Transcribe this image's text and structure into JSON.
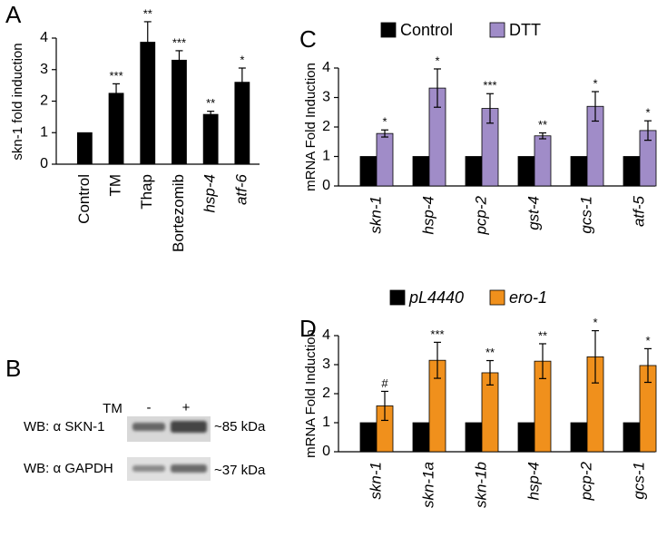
{
  "chart_data": [
    {
      "type": "bar",
      "panel": "A",
      "ylabel": "skn-1 fold induction",
      "categories": [
        "Control",
        "TM",
        "Thap",
        "Bortezomib",
        "hsp-4",
        "atf-6"
      ],
      "category_italic": [
        false,
        false,
        false,
        false,
        true,
        true
      ],
      "series": [
        {
          "color": "#000000",
          "values": [
            1,
            2.25,
            3.87,
            3.3,
            1.58,
            2.6
          ],
          "errors": [
            null,
            0.3,
            0.65,
            0.3,
            0.1,
            0.45
          ],
          "annotations": [
            null,
            "***",
            "**",
            "***",
            "**",
            "*"
          ]
        }
      ],
      "ylim": [
        0,
        4
      ],
      "yticks": [
        0,
        1,
        2,
        3,
        4
      ]
    },
    {
      "type": "bar",
      "panel": "C",
      "ylabel": "mRNA Fold Induction",
      "categories": [
        "skn-1",
        "hsp-4",
        "pcp-2",
        "gst-4",
        "gcs-1",
        "atf-5"
      ],
      "category_italic": [
        true,
        true,
        true,
        true,
        true,
        true
      ],
      "legend_italic": false,
      "series": [
        {
          "name": "Control",
          "color": "#000000",
          "values": [
            1,
            1,
            1,
            1,
            1,
            1
          ]
        },
        {
          "name": "DTT",
          "color": "#a08cc8",
          "values": [
            1.78,
            3.32,
            2.63,
            1.7,
            2.7,
            1.88
          ],
          "errors": [
            0.12,
            0.65,
            0.5,
            0.1,
            0.5,
            0.33
          ],
          "annotations": [
            "*",
            "*",
            "***",
            "**",
            "*",
            "*"
          ]
        }
      ],
      "ylim": [
        0,
        4
      ],
      "yticks": [
        0,
        1,
        2,
        3,
        4
      ]
    },
    {
      "type": "bar",
      "panel": "D",
      "ylabel": "mRNA Fold Induction",
      "categories": [
        "skn-1",
        "skn-1a",
        "skn-1b",
        "hsp-4",
        "pcp-2",
        "gcs-1"
      ],
      "category_italic": [
        true,
        true,
        true,
        true,
        true,
        true
      ],
      "legend_italic": true,
      "series": [
        {
          "name": "pL4440",
          "color": "#000000",
          "values": [
            1,
            1,
            1,
            1,
            1,
            1
          ]
        },
        {
          "name": "ero-1",
          "color": "#f0901c",
          "values": [
            1.58,
            3.15,
            2.72,
            3.12,
            3.27,
            2.97
          ],
          "errors": [
            0.5,
            0.62,
            0.42,
            0.6,
            0.9,
            0.58
          ],
          "annotations": [
            "#",
            "***",
            "**",
            "**",
            "*",
            "*"
          ]
        }
      ],
      "ylim": [
        0,
        4
      ],
      "yticks": [
        0,
        1,
        2,
        3,
        4
      ]
    }
  ],
  "blot": {
    "panel": "B",
    "treatment": "TM",
    "lanes": [
      "-",
      "+"
    ],
    "rows": [
      {
        "label": "WB: α SKN-1",
        "size": "~85 kDa"
      },
      {
        "label": "WB: α GAPDH",
        "size": "~37 kDa"
      }
    ]
  }
}
